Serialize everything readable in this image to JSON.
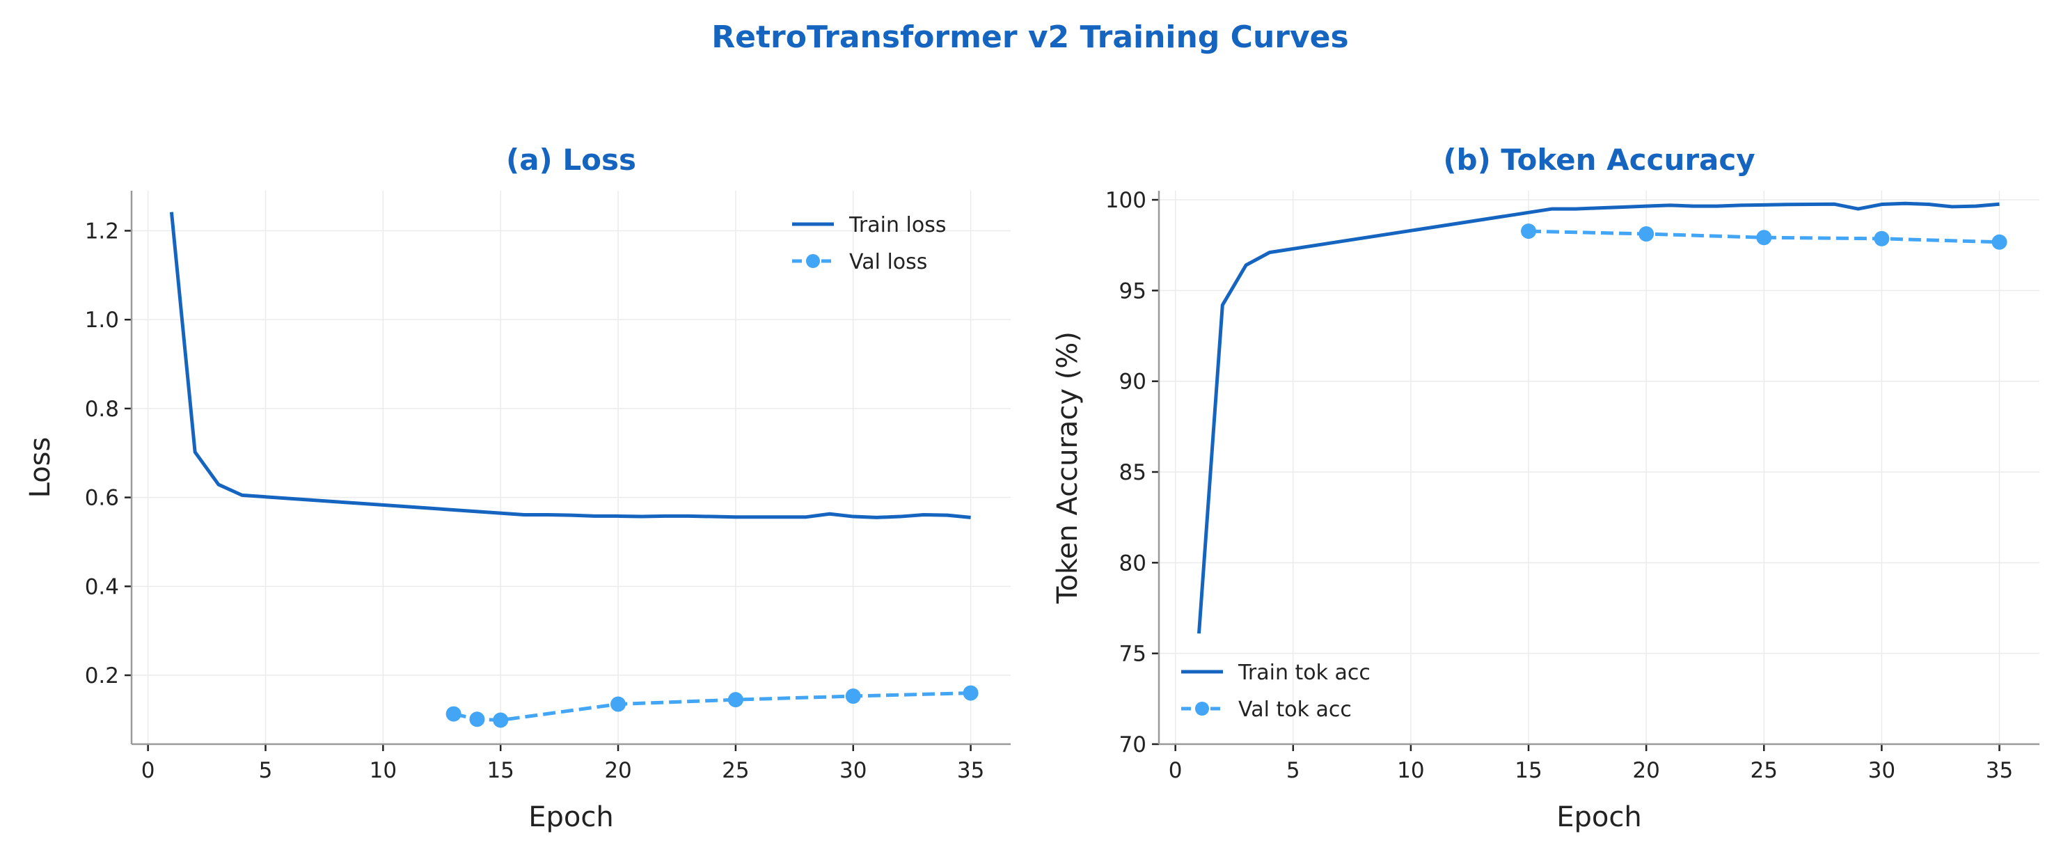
{
  "title": "RetroTransformer v2 Training Curves",
  "colors": {
    "title": "#1565C0",
    "train": "#1565C0",
    "val": "#42A5F5",
    "grid": "#ebebeb",
    "axis": "#999999"
  },
  "chart_data": [
    {
      "type": "line",
      "title": "(a) Loss",
      "xlabel": "Epoch",
      "ylabel": "Loss",
      "xlim": [
        -0.7,
        36.7
      ],
      "ylim": [
        0.045,
        1.29
      ],
      "xticks": [
        0,
        5,
        10,
        15,
        20,
        25,
        30,
        35
      ],
      "yticks": [
        0.2,
        0.4,
        0.6,
        0.8,
        1.0,
        1.2
      ],
      "ytick_labels": [
        "0.2",
        "0.4",
        "0.6",
        "0.8",
        "1.0",
        "1.2"
      ],
      "grid": true,
      "legend_placement": "top-right",
      "series": [
        {
          "name": "Train loss",
          "style": "solid",
          "marker": false,
          "x": [
            1,
            2,
            3,
            4,
            16,
            17,
            18,
            19,
            20,
            21,
            22,
            23,
            24,
            25,
            26,
            27,
            28,
            29,
            30,
            31,
            32,
            33,
            34,
            35
          ],
          "y": [
            1.242,
            0.702,
            0.629,
            0.605,
            0.561,
            0.561,
            0.56,
            0.558,
            0.558,
            0.557,
            0.558,
            0.558,
            0.557,
            0.556,
            0.556,
            0.556,
            0.556,
            0.563,
            0.557,
            0.555,
            0.557,
            0.561,
            0.56,
            0.555
          ]
        },
        {
          "name": "Val loss",
          "style": "dashed",
          "marker": true,
          "x": [
            13,
            14,
            15,
            20,
            25,
            30,
            35
          ],
          "y": [
            0.113,
            0.101,
            0.099,
            0.135,
            0.145,
            0.153,
            0.16
          ]
        }
      ]
    },
    {
      "type": "line",
      "title": "(b) Token Accuracy",
      "xlabel": "Epoch",
      "ylabel": "Token Accuracy (%)",
      "xlim": [
        -0.7,
        36.7
      ],
      "ylim": [
        70,
        100.5
      ],
      "xticks": [
        0,
        5,
        10,
        15,
        20,
        25,
        30,
        35
      ],
      "yticks": [
        70,
        75,
        80,
        85,
        90,
        95,
        100
      ],
      "ytick_labels": [
        "70",
        "75",
        "80",
        "85",
        "90",
        "95",
        "100"
      ],
      "grid": true,
      "legend_placement": "bottom-left",
      "series": [
        {
          "name": "Train tok acc",
          "style": "solid",
          "marker": false,
          "x": [
            1,
            2,
            3,
            4,
            16,
            17,
            18,
            19,
            20,
            21,
            22,
            23,
            24,
            25,
            26,
            27,
            28,
            29,
            30,
            31,
            32,
            33,
            34,
            35
          ],
          "y": [
            76.1,
            94.2,
            96.4,
            97.1,
            99.5,
            99.5,
            99.55,
            99.6,
            99.65,
            99.7,
            99.65,
            99.65,
            99.7,
            99.72,
            99.74,
            99.75,
            99.76,
            99.5,
            99.75,
            99.8,
            99.75,
            99.62,
            99.65,
            99.76
          ]
        },
        {
          "name": "Val tok acc",
          "style": "dashed",
          "marker": true,
          "x": [
            15,
            20,
            25,
            30,
            35
          ],
          "y": [
            98.27,
            98.12,
            97.92,
            97.86,
            97.67
          ]
        }
      ]
    }
  ]
}
